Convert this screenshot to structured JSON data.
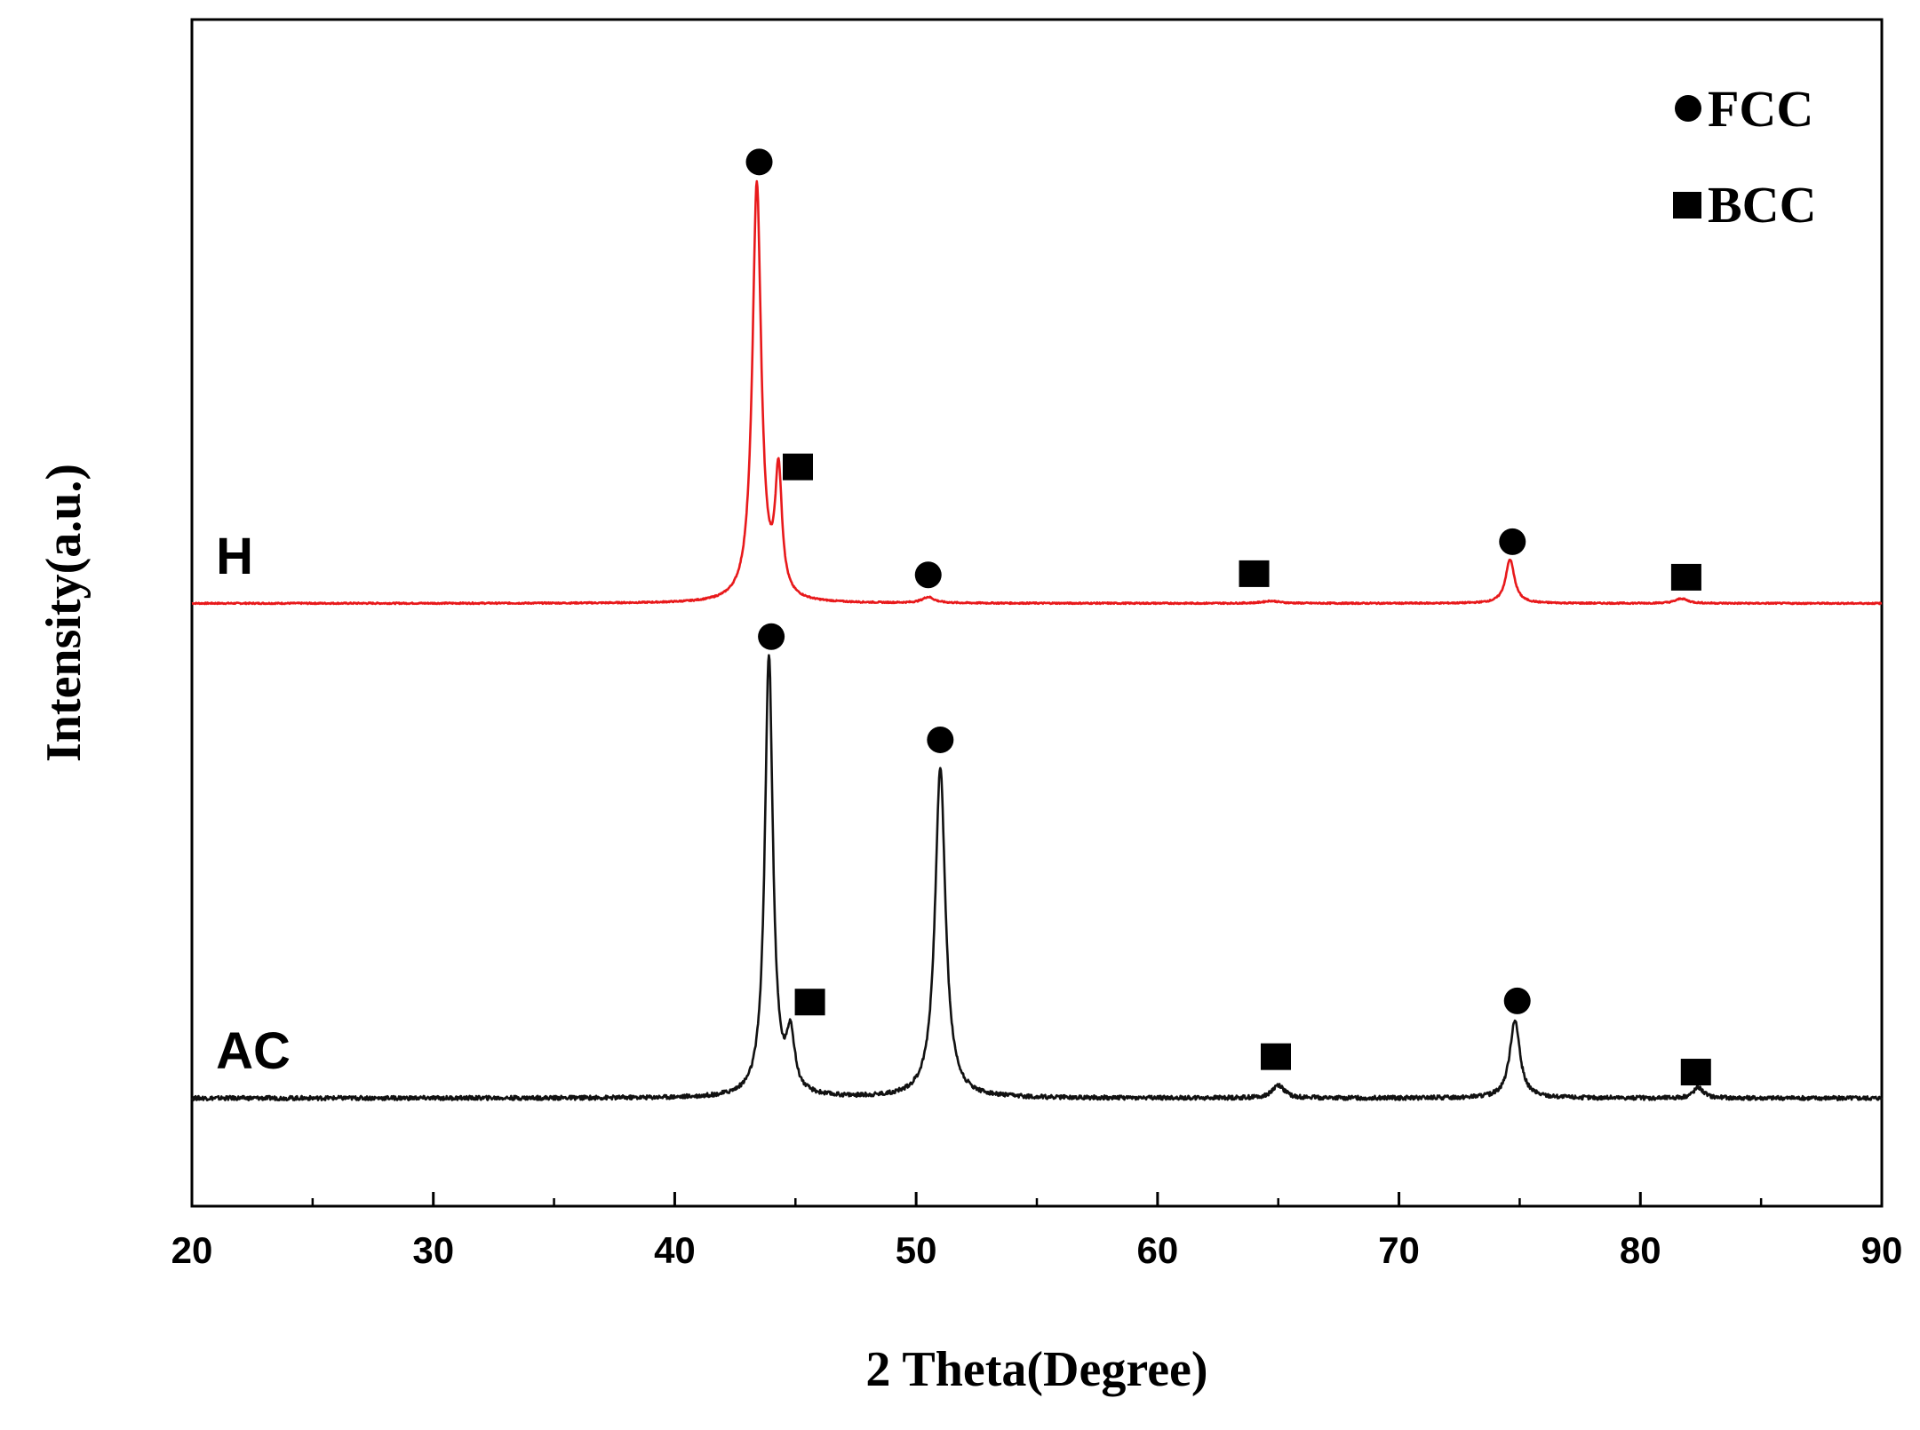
{
  "chart_data": {
    "type": "line",
    "title": "",
    "xlabel": "2 Theta(Degree)",
    "ylabel": "Intensity(a.u.)",
    "xlim": [
      20,
      90
    ],
    "ylim": [
      0,
      100
    ],
    "x_ticks": [
      20,
      30,
      40,
      50,
      60,
      70,
      80,
      90
    ],
    "x_tick_labels": [
      "20",
      "30",
      "40",
      "50",
      "60",
      "70",
      "80",
      "90"
    ],
    "y_ticks_visible": false,
    "grid": false,
    "legend_position": "top-right",
    "legend": [
      {
        "marker": "circle",
        "label": "FCC"
      },
      {
        "marker": "square",
        "label": "BCC"
      }
    ],
    "series": [
      {
        "name": "H",
        "color": "#e8191b",
        "baseline": 50.8,
        "peaks": [
          {
            "x": 43.4,
            "height": 35.2,
            "width": 0.22
          },
          {
            "x": 44.3,
            "height": 10.3,
            "width": 0.17
          },
          {
            "x": 50.5,
            "height": 0.5,
            "width": 0.3
          },
          {
            "x": 64.7,
            "height": 0.2,
            "width": 0.4
          },
          {
            "x": 74.6,
            "height": 3.7,
            "width": 0.22
          },
          {
            "x": 81.7,
            "height": 0.4,
            "width": 0.3
          }
        ],
        "markers": [
          {
            "phase": "FCC",
            "x": 43.5,
            "y": 88.0
          },
          {
            "phase": "BCC",
            "x": 45.1,
            "y": 62.3
          },
          {
            "phase": "FCC",
            "x": 50.5,
            "y": 53.2
          },
          {
            "phase": "BCC",
            "x": 64.0,
            "y": 53.3
          },
          {
            "phase": "FCC",
            "x": 74.7,
            "y": 56.0
          },
          {
            "phase": "BCC",
            "x": 81.9,
            "y": 53.0
          }
        ]
      },
      {
        "name": "AC",
        "color": "#111111",
        "baseline": 9.1,
        "peaks": [
          {
            "x": 43.9,
            "height": 37.2,
            "width": 0.2
          },
          {
            "x": 44.8,
            "height": 4.8,
            "width": 0.2
          },
          {
            "x": 51.0,
            "height": 27.8,
            "width": 0.26
          },
          {
            "x": 65.0,
            "height": 1.1,
            "width": 0.3
          },
          {
            "x": 74.8,
            "height": 6.6,
            "width": 0.25
          },
          {
            "x": 82.4,
            "height": 0.9,
            "width": 0.25
          }
        ],
        "markers": [
          {
            "phase": "FCC",
            "x": 44.0,
            "y": 48.0
          },
          {
            "phase": "BCC",
            "x": 45.6,
            "y": 17.2
          },
          {
            "phase": "FCC",
            "x": 51.0,
            "y": 39.3
          },
          {
            "phase": "BCC",
            "x": 64.9,
            "y": 12.6
          },
          {
            "phase": "FCC",
            "x": 74.9,
            "y": 17.3
          },
          {
            "phase": "BCC",
            "x": 82.3,
            "y": 11.3
          }
        ]
      }
    ]
  }
}
